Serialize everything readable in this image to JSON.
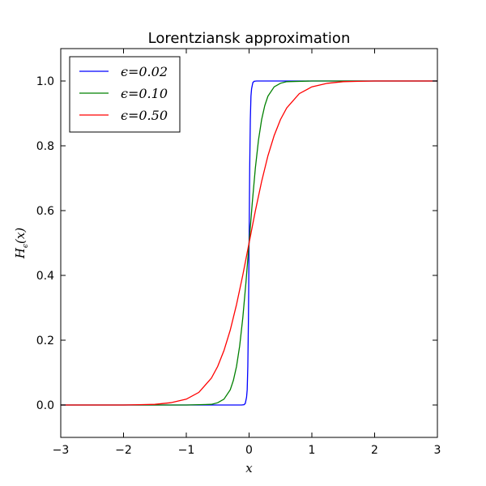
{
  "chart_data": {
    "type": "line",
    "title": "Lorentziansk approximation",
    "xlabel": "x",
    "ylabel": "H",
    "ylabel_subscript": "ϵ",
    "ylabel_suffix": "(x)",
    "xlim": [
      -3,
      3
    ],
    "ylim": [
      -0.1,
      1.1
    ],
    "xticks": [
      -3,
      -2,
      -1,
      0,
      1,
      2,
      3
    ],
    "xtick_labels": [
      "−3",
      "−2",
      "−1",
      "0",
      "1",
      "2",
      "3"
    ],
    "yticks": [
      0.0,
      0.2,
      0.4,
      0.6,
      0.8,
      1.0
    ],
    "ytick_labels": [
      "0.0",
      "0.2",
      "0.4",
      "0.6",
      "0.8",
      "1.0"
    ],
    "grid": false,
    "legend_position": "top-left",
    "series": [
      {
        "name": "ϵ=0.02",
        "color": "#0000ff",
        "x": [
          -3.0,
          -0.5,
          -0.2,
          -0.12,
          -0.08,
          -0.06,
          -0.04,
          -0.03,
          -0.02,
          -0.01,
          0.0,
          0.01,
          0.02,
          0.03,
          0.04,
          0.06,
          0.08,
          0.12,
          0.2,
          0.5,
          3.0
        ],
        "y": [
          0.0,
          0.0,
          0.0,
          0.0,
          0.001,
          0.005,
          0.024,
          0.047,
          0.119,
          0.269,
          0.5,
          0.731,
          0.881,
          0.953,
          0.976,
          0.995,
          0.999,
          1.0,
          1.0,
          1.0,
          1.0
        ]
      },
      {
        "name": "ϵ=0.10",
        "color": "#008000",
        "x": [
          -3.0,
          -1.0,
          -0.6,
          -0.5,
          -0.4,
          -0.3,
          -0.25,
          -0.2,
          -0.15,
          -0.1,
          -0.05,
          0.0,
          0.05,
          0.1,
          0.15,
          0.2,
          0.25,
          0.3,
          0.4,
          0.5,
          0.6,
          1.0,
          3.0
        ],
        "y": [
          0.0,
          0.0,
          0.002,
          0.007,
          0.018,
          0.047,
          0.076,
          0.119,
          0.182,
          0.269,
          0.378,
          0.5,
          0.622,
          0.731,
          0.818,
          0.881,
          0.924,
          0.953,
          0.982,
          0.993,
          0.998,
          1.0,
          1.0
        ]
      },
      {
        "name": "ϵ=0.50",
        "color": "#ff0000",
        "x": [
          -3.0,
          -2.5,
          -2.0,
          -1.75,
          -1.5,
          -1.25,
          -1.0,
          -0.8,
          -0.6,
          -0.5,
          -0.4,
          -0.3,
          -0.2,
          -0.1,
          0.0,
          0.1,
          0.2,
          0.3,
          0.4,
          0.5,
          0.6,
          0.8,
          1.0,
          1.25,
          1.5,
          1.75,
          2.0,
          2.5,
          3.0
        ],
        "y": [
          0.0,
          0.0,
          0.0,
          0.001,
          0.002,
          0.007,
          0.018,
          0.039,
          0.083,
          0.119,
          0.168,
          0.231,
          0.31,
          0.401,
          0.5,
          0.599,
          0.69,
          0.769,
          0.832,
          0.881,
          0.917,
          0.961,
          0.982,
          0.993,
          0.998,
          0.999,
          1.0,
          1.0,
          1.0
        ]
      }
    ]
  }
}
